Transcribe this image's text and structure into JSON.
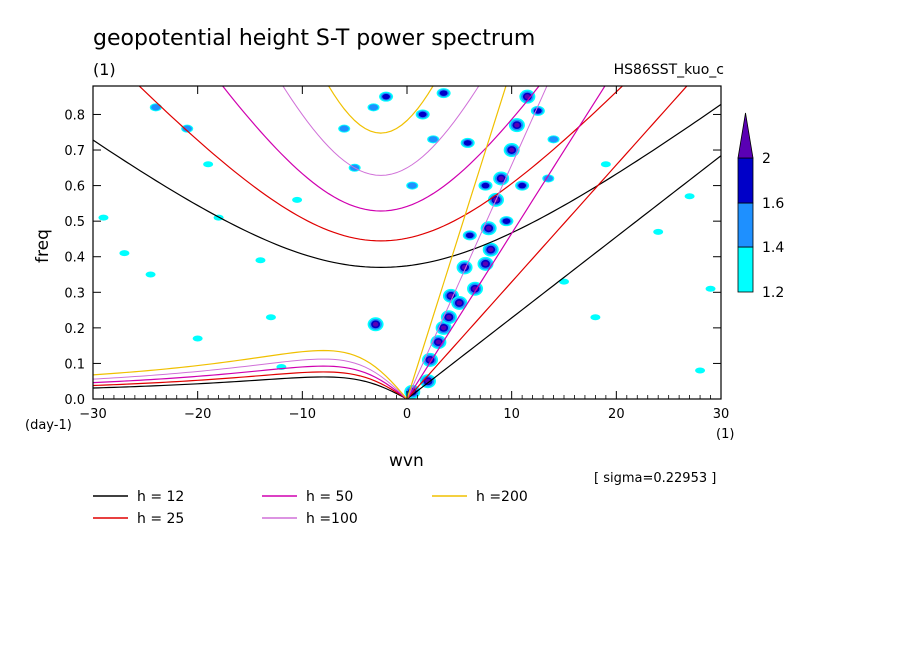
{
  "chart_data": {
    "type": "contour",
    "title": "geopotential height S-T power spectrum",
    "subtitle_left": "(1)",
    "subtitle_right": "HS86SST_kuo_c",
    "xlabel": "wvn",
    "x_unit": "(1)",
    "ylabel": "freq",
    "y_unit": "(day-1)",
    "xlim": [
      -30,
      30
    ],
    "ylim": [
      0,
      0.88
    ],
    "x_ticks": [
      -30,
      -20,
      -10,
      0,
      10,
      20,
      30
    ],
    "y_ticks": [
      0.0,
      0.1,
      0.2,
      0.3,
      0.4,
      0.5,
      0.6,
      0.7,
      0.8
    ],
    "sigma_note": "[ sigma=0.22953 ]",
    "colorbar": {
      "levels": [
        1.2,
        1.4,
        1.6,
        2
      ],
      "labels": [
        "1.2",
        "1.4",
        "1.6",
        "2"
      ],
      "colors": [
        "#00ffff",
        "#1e90ff",
        "#0000c8",
        "#5a00b4"
      ]
    },
    "dispersion_curves": [
      {
        "name": "h = 12",
        "h": 12,
        "color": "#000000",
        "width": 1.2
      },
      {
        "name": "h = 25",
        "h": 25,
        "color": "#e00000",
        "width": 1.2
      },
      {
        "name": "h = 50",
        "h": 50,
        "color": "#d000b0",
        "width": 1.2
      },
      {
        "name": "h =100",
        "h": 100,
        "color": "#d070d8",
        "width": 1.0
      },
      {
        "name": "h =200",
        "h": 200,
        "color": "#f0c000",
        "width": 1.2
      }
    ],
    "spectral_blobs": [
      {
        "k": 0.5,
        "f": 0.02,
        "level": 4
      },
      {
        "k": 2,
        "f": 0.05,
        "level": 4
      },
      {
        "k": 2.2,
        "f": 0.11,
        "level": 4
      },
      {
        "k": 3,
        "f": 0.16,
        "level": 4
      },
      {
        "k": 3.5,
        "f": 0.2,
        "level": 4
      },
      {
        "k": 4,
        "f": 0.23,
        "level": 4
      },
      {
        "k": 4.2,
        "f": 0.29,
        "level": 4
      },
      {
        "k": 5,
        "f": 0.27,
        "level": 4
      },
      {
        "k": 6.5,
        "f": 0.31,
        "level": 4
      },
      {
        "k": 5.5,
        "f": 0.37,
        "level": 4
      },
      {
        "k": 7.5,
        "f": 0.38,
        "level": 4
      },
      {
        "k": 8,
        "f": 0.42,
        "level": 4
      },
      {
        "k": 7.8,
        "f": 0.48,
        "level": 4
      },
      {
        "k": 8.5,
        "f": 0.56,
        "level": 4
      },
      {
        "k": 9,
        "f": 0.62,
        "level": 4
      },
      {
        "k": 10,
        "f": 0.7,
        "level": 4
      },
      {
        "k": 10.5,
        "f": 0.77,
        "level": 4
      },
      {
        "k": 11.5,
        "f": 0.85,
        "level": 4
      },
      {
        "k": 12.5,
        "f": 0.81,
        "level": 3
      },
      {
        "k": 9.5,
        "f": 0.5,
        "level": 3
      },
      {
        "k": 6,
        "f": 0.46,
        "level": 3
      },
      {
        "k": 11,
        "f": 0.6,
        "level": 3
      },
      {
        "k": 7.5,
        "f": 0.6,
        "level": 3
      },
      {
        "k": 5.8,
        "f": 0.72,
        "level": 3
      },
      {
        "k": 3.5,
        "f": 0.86,
        "level": 3
      },
      {
        "k": 1.5,
        "f": 0.8,
        "level": 3
      },
      {
        "k": -2,
        "f": 0.85,
        "level": 3
      },
      {
        "k": -3.2,
        "f": 0.82,
        "level": 2
      },
      {
        "k": -6,
        "f": 0.76,
        "level": 2
      },
      {
        "k": -5,
        "f": 0.65,
        "level": 2
      },
      {
        "k": 2.5,
        "f": 0.73,
        "level": 2
      },
      {
        "k": 0.5,
        "f": 0.6,
        "level": 2
      },
      {
        "k": 13.5,
        "f": 0.62,
        "level": 2
      },
      {
        "k": 14,
        "f": 0.73,
        "level": 2
      },
      {
        "k": -21,
        "f": 0.76,
        "level": 2
      },
      {
        "k": -24,
        "f": 0.82,
        "level": 2
      },
      {
        "k": -24.5,
        "f": 0.35,
        "level": 1
      },
      {
        "k": -27,
        "f": 0.41,
        "level": 1
      },
      {
        "k": -18,
        "f": 0.51,
        "level": 1
      },
      {
        "k": -19,
        "f": 0.66,
        "level": 1
      },
      {
        "k": -10.5,
        "f": 0.56,
        "level": 1
      },
      {
        "k": -14,
        "f": 0.39,
        "level": 1
      },
      {
        "k": -29,
        "f": 0.51,
        "level": 1
      },
      {
        "k": -3,
        "f": 0.21,
        "level": 4
      },
      {
        "k": 19,
        "f": 0.66,
        "level": 1
      },
      {
        "k": 24,
        "f": 0.47,
        "level": 1
      },
      {
        "k": 27,
        "f": 0.57,
        "level": 1
      },
      {
        "k": 29,
        "f": 0.31,
        "level": 1
      },
      {
        "k": 28,
        "f": 0.08,
        "level": 1
      },
      {
        "k": -12,
        "f": 0.09,
        "level": 1
      },
      {
        "k": -13,
        "f": 0.23,
        "level": 1
      },
      {
        "k": 18,
        "f": 0.23,
        "level": 1
      },
      {
        "k": 15,
        "f": 0.33,
        "level": 1
      },
      {
        "k": -20,
        "f": 0.17,
        "level": 1
      }
    ]
  },
  "legend": {
    "entries": [
      {
        "label": "h = 12",
        "color": "#000000"
      },
      {
        "label": "h = 25",
        "color": "#e00000"
      },
      {
        "label": "h = 50",
        "color": "#d000b0"
      },
      {
        "label": "h =100",
        "color": "#d070d8"
      },
      {
        "label": "h =200",
        "color": "#f0c000"
      }
    ]
  }
}
